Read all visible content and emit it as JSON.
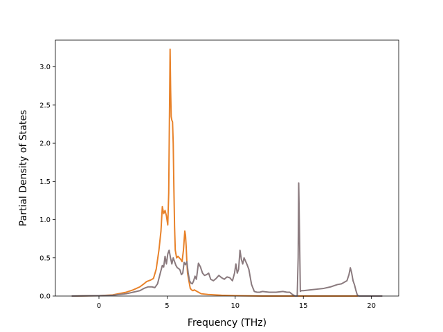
{
  "chart_data": {
    "type": "line",
    "title": "",
    "xlabel": "Frequency (THz)",
    "ylabel": "Partial Density of States",
    "xlim": [
      -3.2,
      22.0
    ],
    "ylim": [
      0.0,
      3.35
    ],
    "xticks": [
      0,
      5,
      10,
      15,
      20
    ],
    "xtick_labels": [
      "0",
      "5",
      "10",
      "15",
      "20"
    ],
    "yticks": [
      0.0,
      0.5,
      1.0,
      1.5,
      2.0,
      2.5,
      3.0
    ],
    "ytick_labels": [
      "0.0",
      "0.5",
      "1.0",
      "1.5",
      "2.0",
      "2.5",
      "3.0"
    ],
    "grid": false,
    "legend": "none",
    "series": [
      {
        "color": "#e8822a",
        "x": [
          -2.0,
          0.0,
          1.0,
          2.0,
          2.5,
          3.0,
          3.3,
          3.5,
          3.8,
          4.0,
          4.2,
          4.4,
          4.55,
          4.65,
          4.75,
          4.85,
          4.95,
          5.05,
          5.12,
          5.18,
          5.22,
          5.26,
          5.3,
          5.35,
          5.4,
          5.45,
          5.5,
          5.55,
          5.6,
          5.7,
          5.8,
          5.9,
          6.0,
          6.1,
          6.2,
          6.3,
          6.35,
          6.4,
          6.45,
          6.5,
          6.6,
          6.7,
          6.8,
          6.9,
          7.0,
          7.2,
          7.5,
          8.0,
          9.0,
          10.0,
          12.0,
          15.0,
          18.0,
          19.0
        ],
        "y": [
          0.0,
          0.005,
          0.015,
          0.05,
          0.08,
          0.12,
          0.16,
          0.19,
          0.21,
          0.23,
          0.35,
          0.6,
          0.85,
          1.17,
          1.08,
          1.12,
          1.05,
          0.93,
          1.35,
          2.5,
          3.23,
          2.7,
          2.35,
          2.3,
          2.28,
          2.0,
          1.4,
          0.9,
          0.6,
          0.5,
          0.52,
          0.5,
          0.48,
          0.45,
          0.6,
          0.85,
          0.8,
          0.65,
          0.45,
          0.3,
          0.2,
          0.1,
          0.08,
          0.07,
          0.08,
          0.06,
          0.03,
          0.02,
          0.01,
          0.005,
          0.0,
          0.0,
          0.0,
          0.0
        ]
      },
      {
        "color": "#8a7a7e",
        "x": [
          -2.0,
          0.0,
          1.0,
          2.0,
          2.5,
          3.0,
          3.3,
          3.6,
          3.9,
          4.1,
          4.3,
          4.5,
          4.65,
          4.75,
          4.85,
          4.95,
          5.05,
          5.15,
          5.25,
          5.35,
          5.45,
          5.55,
          5.65,
          5.75,
          5.85,
          5.95,
          6.05,
          6.15,
          6.25,
          6.35,
          6.45,
          6.55,
          6.65,
          6.75,
          6.85,
          6.95,
          7.05,
          7.15,
          7.3,
          7.45,
          7.6,
          7.75,
          7.9,
          8.05,
          8.2,
          8.4,
          8.6,
          8.8,
          9.0,
          9.2,
          9.4,
          9.6,
          9.8,
          9.95,
          10.05,
          10.15,
          10.25,
          10.35,
          10.45,
          10.55,
          10.65,
          10.75,
          10.85,
          11.0,
          11.2,
          11.4,
          11.6,
          11.8,
          12.0,
          12.5,
          13.0,
          13.5,
          13.8,
          14.0,
          14.2,
          14.4,
          14.55,
          14.62,
          14.66,
          14.72,
          14.78,
          14.85,
          15.0,
          15.5,
          16.0,
          16.5,
          17.0,
          17.5,
          17.8,
          18.0,
          18.2,
          18.35,
          18.45,
          18.55,
          18.65,
          18.75,
          18.85,
          18.95,
          19.05,
          19.2,
          20.0,
          20.8
        ],
        "y": [
          0.0,
          0.005,
          0.01,
          0.03,
          0.05,
          0.07,
          0.1,
          0.12,
          0.12,
          0.11,
          0.16,
          0.3,
          0.4,
          0.38,
          0.52,
          0.42,
          0.55,
          0.6,
          0.5,
          0.42,
          0.5,
          0.45,
          0.4,
          0.37,
          0.36,
          0.34,
          0.28,
          0.3,
          0.44,
          0.41,
          0.45,
          0.3,
          0.2,
          0.17,
          0.16,
          0.2,
          0.26,
          0.22,
          0.43,
          0.38,
          0.3,
          0.27,
          0.28,
          0.3,
          0.22,
          0.2,
          0.23,
          0.27,
          0.24,
          0.22,
          0.25,
          0.24,
          0.2,
          0.3,
          0.42,
          0.3,
          0.35,
          0.6,
          0.48,
          0.42,
          0.5,
          0.46,
          0.42,
          0.35,
          0.15,
          0.06,
          0.05,
          0.05,
          0.06,
          0.05,
          0.05,
          0.06,
          0.05,
          0.05,
          0.02,
          0.0,
          0.0,
          0.5,
          1.48,
          0.8,
          0.06,
          0.07,
          0.07,
          0.08,
          0.09,
          0.1,
          0.12,
          0.15,
          0.16,
          0.18,
          0.2,
          0.28,
          0.37,
          0.3,
          0.2,
          0.15,
          0.08,
          0.02,
          0.0,
          0.0,
          0.0,
          0.0
        ]
      }
    ]
  }
}
